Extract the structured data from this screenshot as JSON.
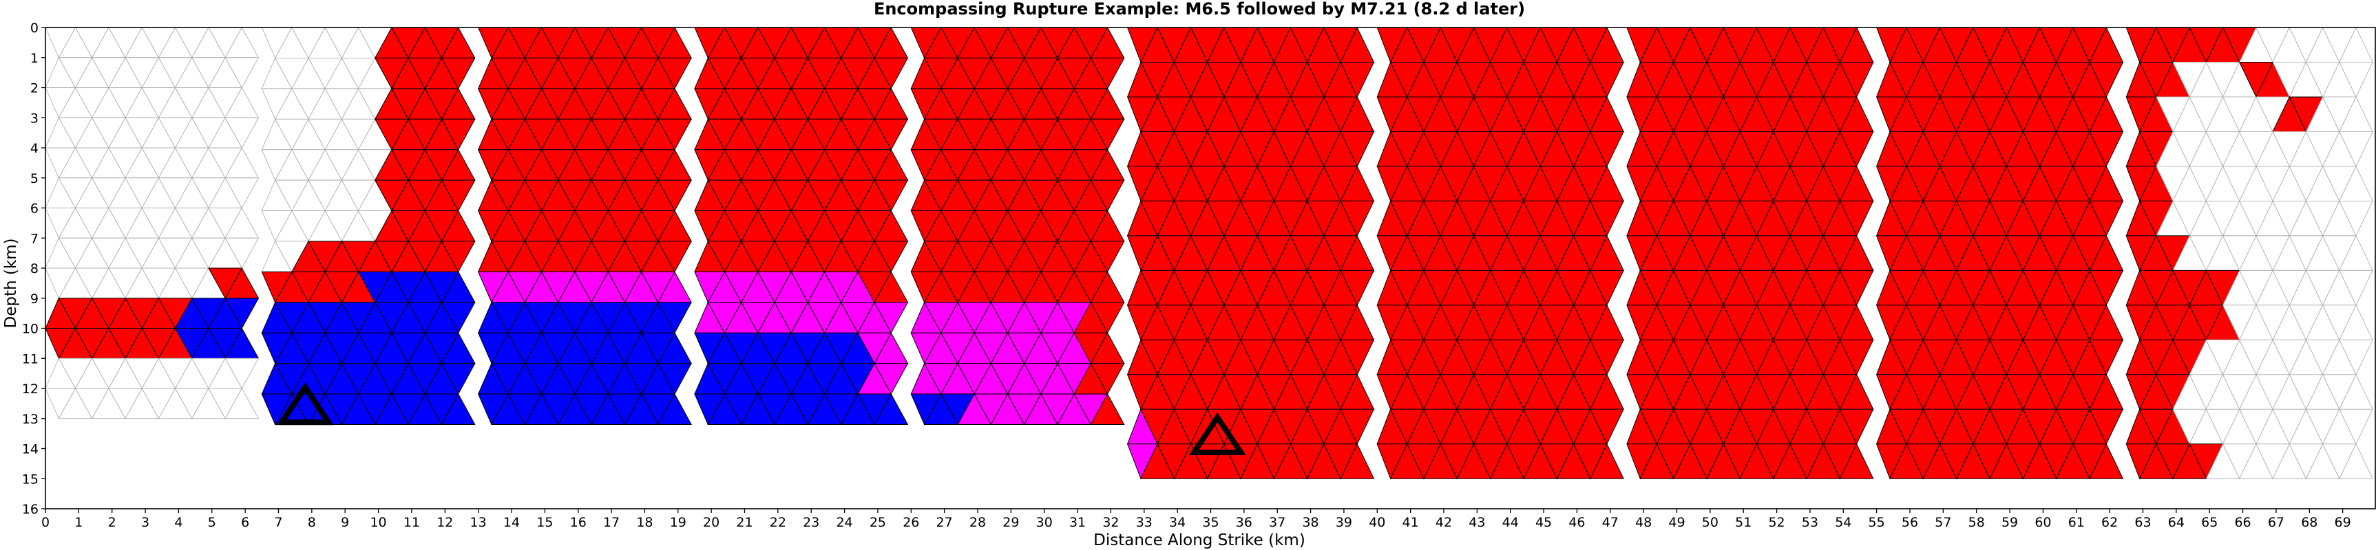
{
  "chart_data": {
    "type": "mesh",
    "title": "Encompassing Rupture Example: M6.5 followed by M7.21 (8.2 d later)",
    "xlabel": "Distance Along Strike (km)",
    "ylabel": "Depth (km)",
    "xlim": [
      0,
      70
    ],
    "ylim": [
      16,
      0
    ],
    "xticks": [
      0,
      1,
      2,
      3,
      4,
      5,
      6,
      7,
      8,
      9,
      10,
      11,
      12,
      13,
      14,
      15,
      16,
      17,
      18,
      19,
      20,
      21,
      22,
      23,
      24,
      25,
      26,
      27,
      28,
      29,
      30,
      31,
      32,
      33,
      34,
      35,
      36,
      37,
      38,
      39,
      40,
      41,
      42,
      43,
      44,
      45,
      46,
      47,
      48,
      49,
      50,
      51,
      52,
      53,
      54,
      55,
      56,
      57,
      58,
      59,
      60,
      61,
      62,
      63,
      64,
      65,
      66,
      67,
      68,
      69
    ],
    "yticks": [
      0,
      1,
      2,
      3,
      4,
      5,
      6,
      7,
      8,
      9,
      10,
      11,
      12,
      13,
      14,
      15,
      16
    ],
    "colors": {
      "M7.21 rupture": "#ff0000",
      "M6.5 rupture": "#0000ff",
      "overlap": "#ff00ff",
      "unruptured": "#ffffff"
    },
    "hypocenters": [
      {
        "x": 7.8,
        "y": 12.6
      },
      {
        "x": 35.2,
        "y": 13.6
      }
    ],
    "segments": [
      {
        "x": [
          0.0,
          6.5
        ],
        "depth": [
          0.0,
          13.0
        ],
        "zones": [
          {
            "depth": [
              8.3,
              9.4
            ],
            "x": [
              5.0,
              6.5
            ],
            "fill": "red"
          },
          {
            "depth": [
              9.4,
              10.7
            ],
            "x": [
              0.0,
              4.0
            ],
            "fill": "red"
          },
          {
            "depth": [
              9.4,
              10.7
            ],
            "x": [
              4.0,
              6.5
            ],
            "fill": "blue"
          }
        ]
      },
      {
        "x": [
          6.5,
          13.0
        ],
        "depth": [
          0.0,
          13.2
        ],
        "zones": [
          {
            "depth": [
              0.0,
              7.0
            ],
            "x": [
              10.0,
              13.0
            ],
            "fill": "red"
          },
          {
            "depth": [
              7.0,
              8.3
            ],
            "x": [
              7.5,
              13.0
            ],
            "fill": "red"
          },
          {
            "depth": [
              8.3,
              9.4
            ],
            "x": [
              6.5,
              9.5
            ],
            "fill": "red"
          },
          {
            "depth": [
              8.3,
              9.4
            ],
            "x": [
              9.5,
              13.0
            ],
            "fill": "blue"
          },
          {
            "depth": [
              9.4,
              13.2
            ],
            "x": [
              6.5,
              13.0
            ],
            "fill": "blue"
          }
        ]
      },
      {
        "x": [
          13.0,
          19.5
        ],
        "depth": [
          0.0,
          13.2
        ],
        "zones": [
          {
            "depth": [
              0.0,
              8.3
            ],
            "x": [
              13.0,
              19.5
            ],
            "fill": "red"
          },
          {
            "depth": [
              8.3,
              9.4
            ],
            "x": [
              13.0,
              19.5
            ],
            "fill": "magenta"
          },
          {
            "depth": [
              9.4,
              13.2
            ],
            "x": [
              13.0,
              19.5
            ],
            "fill": "blue"
          }
        ]
      },
      {
        "x": [
          19.5,
          26.0
        ],
        "depth": [
          0.0,
          13.2
        ],
        "zones": [
          {
            "depth": [
              0.0,
              8.3
            ],
            "x": [
              19.5,
              26.0
            ],
            "fill": "red"
          },
          {
            "depth": [
              8.3,
              9.4
            ],
            "x": [
              19.5,
              24.5
            ],
            "fill": "magenta"
          },
          {
            "depth": [
              8.3,
              9.4
            ],
            "x": [
              24.5,
              26.0
            ],
            "fill": "red"
          },
          {
            "depth": [
              9.4,
              10.6
            ],
            "x": [
              19.5,
              26.0
            ],
            "fill": "magenta"
          },
          {
            "depth": [
              10.6,
              11.8
            ],
            "x": [
              19.5,
              24.5
            ],
            "fill": "blue"
          },
          {
            "depth": [
              10.6,
              11.8
            ],
            "x": [
              24.5,
              26.0
            ],
            "fill": "magenta"
          },
          {
            "depth": [
              11.8,
              13.2
            ],
            "x": [
              19.5,
              26.0
            ],
            "fill": "blue"
          }
        ]
      },
      {
        "x": [
          26.0,
          32.5
        ],
        "depth": [
          0.0,
          13.2
        ],
        "zones": [
          {
            "depth": [
              0.0,
              9.4
            ],
            "x": [
              26.0,
              32.5
            ],
            "fill": "red"
          },
          {
            "depth": [
              9.4,
              12.0
            ],
            "x": [
              26.0,
              31.0
            ],
            "fill": "magenta"
          },
          {
            "depth": [
              9.4,
              12.0
            ],
            "x": [
              31.0,
              32.5
            ],
            "fill": "red"
          },
          {
            "depth": [
              12.0,
              13.2
            ],
            "x": [
              26.0,
              27.5
            ],
            "fill": "blue"
          },
          {
            "depth": [
              12.0,
              13.2
            ],
            "x": [
              27.5,
              31.5
            ],
            "fill": "magenta"
          },
          {
            "depth": [
              12.0,
              13.2
            ],
            "x": [
              31.5,
              32.5
            ],
            "fill": "red"
          }
        ]
      },
      {
        "x": [
          32.5,
          40.0
        ],
        "depth": [
          0.0,
          15.0
        ],
        "zones": [
          {
            "depth": [
              0.0,
              13.2
            ],
            "x": [
              32.5,
              40.0
            ],
            "fill": "red"
          },
          {
            "depth": [
              13.2,
              15.0
            ],
            "x": [
              32.5,
              33.0
            ],
            "fill": "magenta"
          },
          {
            "depth": [
              13.2,
              15.0
            ],
            "x": [
              33.0,
              40.0
            ],
            "fill": "red"
          }
        ]
      },
      {
        "x": [
          40.0,
          47.5
        ],
        "depth": [
          0.0,
          15.0
        ],
        "zones": [
          {
            "depth": [
              0.0,
              15.0
            ],
            "x": [
              40.0,
              47.5
            ],
            "fill": "red"
          }
        ]
      },
      {
        "x": [
          47.5,
          55.0
        ],
        "depth": [
          0.0,
          15.0
        ],
        "zones": [
          {
            "depth": [
              0.0,
              15.0
            ],
            "x": [
              47.5,
              55.0
            ],
            "fill": "red"
          }
        ]
      },
      {
        "x": [
          55.0,
          62.5
        ],
        "depth": [
          0.0,
          15.0
        ],
        "zones": [
          {
            "depth": [
              0.0,
              15.0
            ],
            "x": [
              55.0,
              62.5
            ],
            "fill": "red"
          }
        ]
      },
      {
        "x": [
          62.5,
          70.0
        ],
        "depth": [
          0.0,
          15.0
        ],
        "zones": [
          {
            "depth": [
              0.0,
              1.2
            ],
            "x": [
              62.5,
              66.0
            ],
            "fill": "red"
          },
          {
            "depth": [
              1.2,
              2.3
            ],
            "x": [
              62.5,
              64.0
            ],
            "fill": "red"
          },
          {
            "depth": [
              1.2,
              2.3
            ],
            "x": [
              66.0,
              67.0
            ],
            "fill": "red"
          },
          {
            "depth": [
              2.3,
              3.5
            ],
            "x": [
              62.5,
              63.5
            ],
            "fill": "red"
          },
          {
            "depth": [
              2.3,
              3.5
            ],
            "x": [
              67.0,
              68.0
            ],
            "fill": "red"
          },
          {
            "depth": [
              3.5,
              7.5
            ],
            "x": [
              62.5,
              63.5
            ],
            "fill": "red"
          },
          {
            "depth": [
              7.5,
              8.3
            ],
            "x": [
              62.5,
              64.0
            ],
            "fill": "red"
          },
          {
            "depth": [
              8.3,
              10.0
            ],
            "x": [
              62.5,
              65.5
            ],
            "fill": "red"
          },
          {
            "depth": [
              10.0,
              12.0
            ],
            "x": [
              62.5,
              64.5
            ],
            "fill": "red"
          },
          {
            "depth": [
              12.0,
              13.5
            ],
            "x": [
              62.5,
              64.0
            ],
            "fill": "red"
          },
          {
            "depth": [
              13.5,
              15.0
            ],
            "x": [
              62.5,
              65.0
            ],
            "fill": "red"
          }
        ]
      }
    ]
  }
}
